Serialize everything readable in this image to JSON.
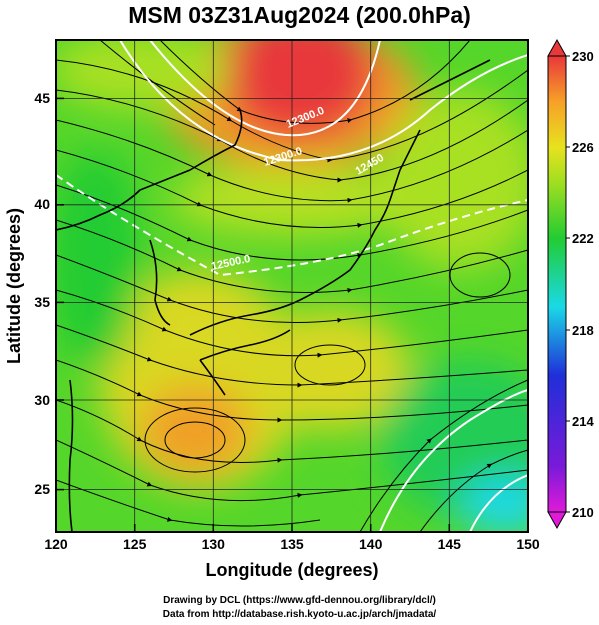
{
  "title": "MSM 03Z31Aug2024 (200.0hPa)",
  "xlabel": "Longitude (degrees)",
  "ylabel": "Latitude  (degrees)",
  "x_ticks": [
    "120",
    "125",
    "130",
    "135",
    "140",
    "145",
    "150"
  ],
  "y_ticks": [
    "25",
    "30",
    "35",
    "40",
    "45"
  ],
  "colorbar_ticks": [
    "230",
    "226",
    "222",
    "218",
    "214",
    "210"
  ],
  "contour_labels": [
    "12300.0",
    "12300.0",
    "12450",
    "12500.0"
  ],
  "credit_line1": "Drawing by DCL (https://www.gfd-dennou.org/library/dcl/)",
  "credit_line2": "Data from http://database.rish.kyoto-u.ac.jp/arch/jmadata/",
  "chart_data": {
    "type": "heatmap",
    "xlim": [
      120,
      150
    ],
    "ylim": [
      22.5,
      47.5
    ],
    "colorbar_range": [
      210,
      230
    ],
    "colors": {
      "red": "#e8383a",
      "orange": "#f7a028",
      "yellow": "#e8e21e",
      "lime": "#9ede20",
      "green": "#22cc33",
      "cyan": "#1ad9e6",
      "blue": "#1f2fd9",
      "magenta": "#e01ad9"
    }
  }
}
